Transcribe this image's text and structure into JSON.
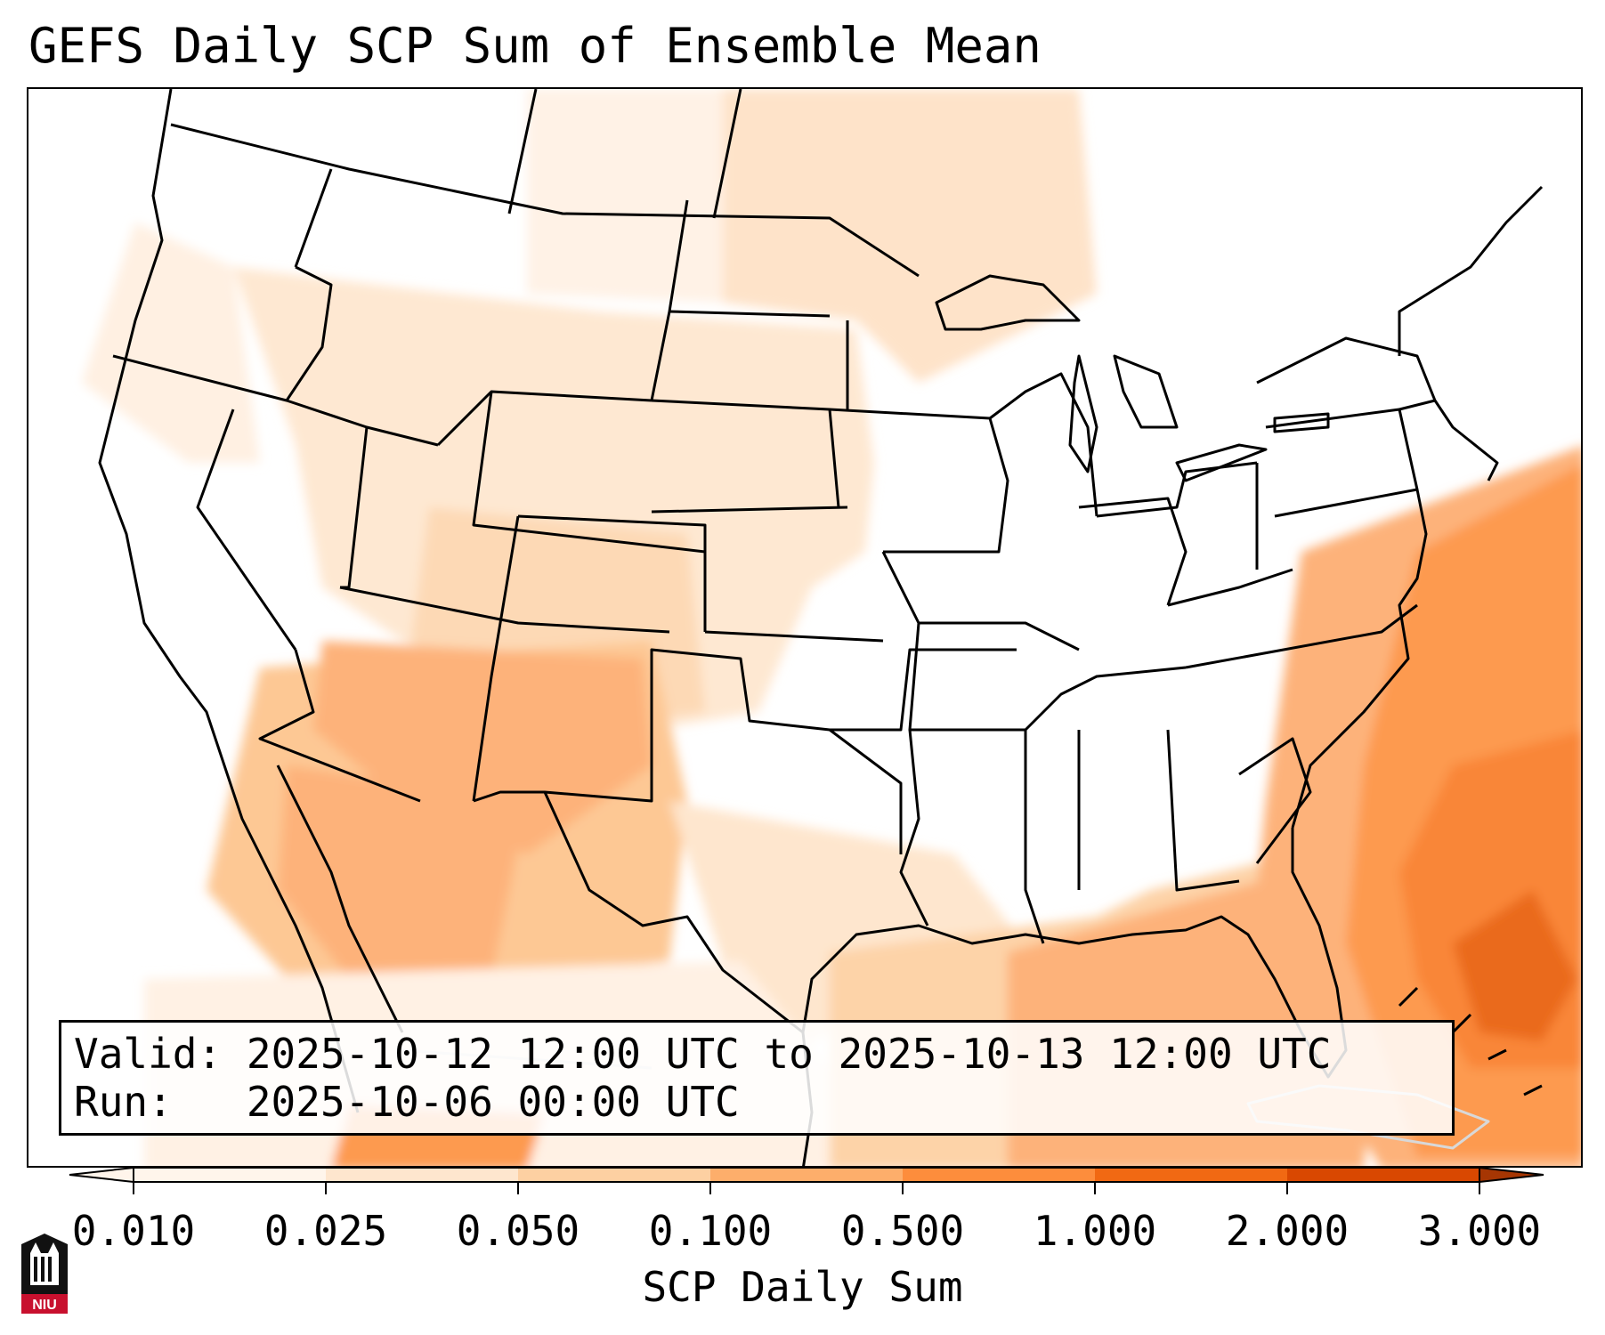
{
  "title": "GEFS Daily SCP Sum of Ensemble Mean",
  "valid_line": "Valid: 2025-10-12 12:00 UTC to 2025-10-13 12:00 UTC",
  "run_line": "Run:   2025-10-06 00:00 UTC",
  "colorbar": {
    "label": "SCP Daily Sum",
    "ticks": [
      "0.010",
      "0.025",
      "0.050",
      "0.100",
      "0.500",
      "1.000",
      "2.000",
      "3.000"
    ],
    "colors": [
      "#fff5eb",
      "#fee6ce",
      "#fdd0a2",
      "#fdae6b",
      "#fd8d3c",
      "#f16913",
      "#d94801",
      "#a63603"
    ],
    "extend": "both"
  },
  "logo": {
    "text": "NIU",
    "icon": "university-tower-icon"
  }
}
